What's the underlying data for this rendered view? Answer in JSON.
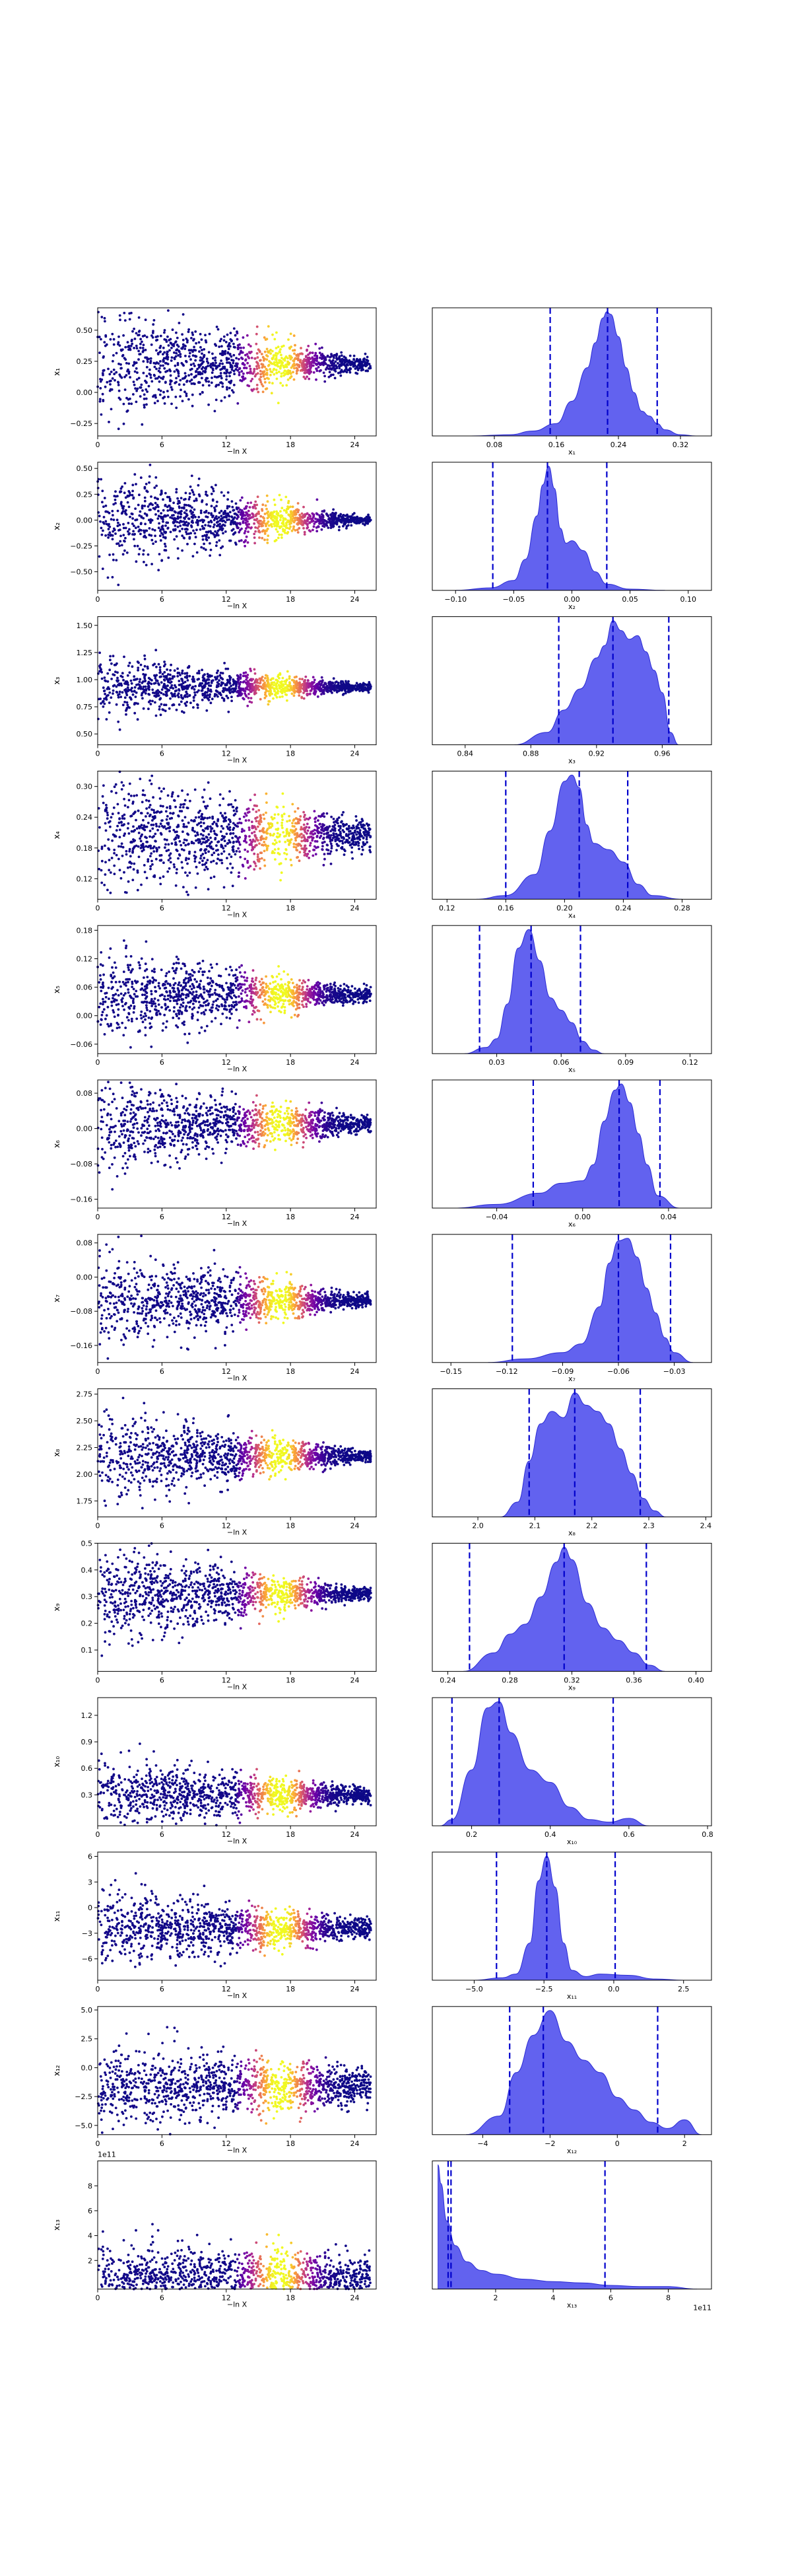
{
  "figure": {
    "left_xlabel": "−ln X",
    "left_xticks": [
      0,
      6,
      12,
      18,
      24
    ],
    "left_xlim": [
      0,
      26
    ]
  },
  "chart_data": [
    {
      "type": "scatter",
      "row": 1,
      "ylabel": "x₁",
      "ylim": [
        -0.35,
        0.68
      ],
      "yticks": [
        -0.25,
        0,
        0.25,
        0.5
      ],
      "ytick_labels": [
        "−0.25",
        "0.00",
        "0.25",
        "0.50"
      ],
      "center": 0.23,
      "spread_start": 0.24,
      "spread_end": 0.03,
      "mean_trend": 0.0
    },
    {
      "type": "area",
      "row": 1,
      "xlabel": "x₁",
      "xlim": [
        0.0,
        0.36
      ],
      "xticks": [
        0.08,
        0.16,
        0.24,
        0.32
      ],
      "xtick_labels": [
        "0.08",
        "0.16",
        "0.24",
        "0.32"
      ],
      "dashed_lines": [
        0.152,
        0.226,
        0.29
      ],
      "density_x": [
        0.05,
        0.1,
        0.13,
        0.16,
        0.18,
        0.2,
        0.21,
        0.22,
        0.225,
        0.23,
        0.24,
        0.25,
        0.26,
        0.27,
        0.28,
        0.29,
        0.3,
        0.32,
        0.34
      ],
      "density_y": [
        0,
        0.01,
        0.04,
        0.1,
        0.28,
        0.55,
        0.75,
        0.95,
        1.0,
        0.98,
        0.8,
        0.55,
        0.35,
        0.2,
        0.16,
        0.1,
        0.05,
        0.01,
        0
      ]
    },
    {
      "type": "scatter",
      "row": 2,
      "ylabel": "x₂",
      "ylim": [
        -0.68,
        0.56
      ],
      "yticks": [
        -0.5,
        -0.25,
        0,
        0.25,
        0.5
      ],
      "ytick_labels": [
        "−0.50",
        "−0.25",
        "0.00",
        "0.25",
        "0.50"
      ],
      "center": 0.0,
      "spread_start": 0.26,
      "spread_end": 0.02,
      "mean_trend": 0.0
    },
    {
      "type": "area",
      "row": 2,
      "xlabel": "x₂",
      "xlim": [
        -0.12,
        0.12
      ],
      "xticks": [
        -0.1,
        -0.05,
        0,
        0.05,
        0.1
      ],
      "xtick_labels": [
        "−0.10",
        "−0.05",
        "0.00",
        "0.05",
        "0.10"
      ],
      "dashed_lines": [
        -0.068,
        -0.021,
        0.03
      ],
      "density_x": [
        -0.1,
        -0.07,
        -0.05,
        -0.04,
        -0.03,
        -0.025,
        -0.02,
        -0.015,
        -0.01,
        -0.005,
        0.0,
        0.01,
        0.02,
        0.03,
        0.05,
        0.08
      ],
      "density_y": [
        0,
        0.02,
        0.08,
        0.25,
        0.6,
        0.85,
        1.0,
        0.82,
        0.5,
        0.38,
        0.4,
        0.32,
        0.15,
        0.05,
        0.01,
        0
      ]
    },
    {
      "type": "scatter",
      "row": 3,
      "ylabel": "x₃",
      "ylim": [
        0.4,
        1.58
      ],
      "yticks": [
        0.5,
        0.75,
        1.0,
        1.25,
        1.5
      ],
      "ytick_labels": [
        "0.50",
        "0.75",
        "1.00",
        "1.25",
        "1.50"
      ],
      "center": 0.93,
      "spread_start": 0.14,
      "spread_end": 0.02,
      "mean_trend": 0.0
    },
    {
      "type": "area",
      "row": 3,
      "xlabel": "x₃",
      "xlim": [
        0.82,
        0.99
      ],
      "xticks": [
        0.84,
        0.88,
        0.92,
        0.96
      ],
      "xtick_labels": [
        "0.84",
        "0.88",
        "0.92",
        "0.96"
      ],
      "dashed_lines": [
        0.897,
        0.93,
        0.964
      ],
      "density_x": [
        0.87,
        0.89,
        0.9,
        0.91,
        0.92,
        0.925,
        0.93,
        0.935,
        0.94,
        0.945,
        0.95,
        0.955,
        0.96,
        0.965,
        0.97
      ],
      "density_y": [
        0,
        0.1,
        0.28,
        0.45,
        0.7,
        0.8,
        1.0,
        0.92,
        0.85,
        0.88,
        0.75,
        0.6,
        0.42,
        0.1,
        0
      ]
    },
    {
      "type": "scatter",
      "row": 4,
      "ylabel": "x₄",
      "ylim": [
        0.08,
        0.33
      ],
      "yticks": [
        0.12,
        0.18,
        0.24,
        0.3
      ],
      "ytick_labels": [
        "0.12",
        "0.18",
        "0.24",
        "0.30"
      ],
      "center": 0.205,
      "spread_start": 0.065,
      "spread_end": 0.015,
      "mean_trend": 0.0
    },
    {
      "type": "area",
      "row": 4,
      "xlabel": "x₄",
      "xlim": [
        0.11,
        0.3
      ],
      "xticks": [
        0.12,
        0.16,
        0.2,
        0.24,
        0.28
      ],
      "xtick_labels": [
        "0.12",
        "0.16",
        "0.20",
        "0.24",
        "0.28"
      ],
      "dashed_lines": [
        0.16,
        0.21,
        0.243
      ],
      "density_x": [
        0.14,
        0.16,
        0.18,
        0.19,
        0.2,
        0.205,
        0.21,
        0.215,
        0.22,
        0.23,
        0.24,
        0.25,
        0.26,
        0.28
      ],
      "density_y": [
        0,
        0.03,
        0.2,
        0.55,
        0.95,
        1.0,
        0.9,
        0.6,
        0.45,
        0.4,
        0.3,
        0.12,
        0.03,
        0
      ]
    },
    {
      "type": "scatter",
      "row": 5,
      "ylabel": "x₅",
      "ylim": [
        -0.08,
        0.19
      ],
      "yticks": [
        -0.06,
        0,
        0.06,
        0.12,
        0.18
      ],
      "ytick_labels": [
        "−0.06",
        "0.00",
        "0.06",
        "0.12",
        "0.18"
      ],
      "center": 0.045,
      "spread_start": 0.05,
      "spread_end": 0.008,
      "mean_trend": 0.0
    },
    {
      "type": "area",
      "row": 5,
      "xlabel": "x₅",
      "xlim": [
        0.0,
        0.13
      ],
      "xticks": [
        0.03,
        0.06,
        0.09,
        0.12
      ],
      "xtick_labels": [
        "0.03",
        "0.06",
        "0.09",
        "0.12"
      ],
      "dashed_lines": [
        0.022,
        0.046,
        0.069
      ],
      "density_x": [
        0.015,
        0.025,
        0.03,
        0.035,
        0.04,
        0.045,
        0.05,
        0.055,
        0.06,
        0.065,
        0.07,
        0.075,
        0.08
      ],
      "density_y": [
        0,
        0.05,
        0.12,
        0.4,
        0.85,
        1.0,
        0.75,
        0.45,
        0.35,
        0.25,
        0.1,
        0.03,
        0
      ]
    },
    {
      "type": "scatter",
      "row": 6,
      "ylabel": "x₆",
      "ylim": [
        -0.18,
        0.11
      ],
      "yticks": [
        -0.16,
        -0.08,
        0,
        0.08
      ],
      "ytick_labels": [
        "−0.16",
        "−0.08",
        "0.00",
        "0.08"
      ],
      "center": 0.01,
      "spread_start": 0.055,
      "spread_end": 0.01,
      "mean_trend": 0.0
    },
    {
      "type": "area",
      "row": 6,
      "xlabel": "x₆",
      "xlim": [
        -0.07,
        0.06
      ],
      "xticks": [
        -0.04,
        0,
        0.04
      ],
      "xtick_labels": [
        "−0.04",
        "0.00",
        "0.04"
      ],
      "dashed_lines": [
        -0.023,
        0.017,
        0.036
      ],
      "density_x": [
        -0.06,
        -0.04,
        -0.02,
        -0.01,
        0.0,
        0.005,
        0.01,
        0.015,
        0.018,
        0.022,
        0.026,
        0.03,
        0.035,
        0.045
      ],
      "density_y": [
        0,
        0.03,
        0.12,
        0.2,
        0.22,
        0.35,
        0.7,
        0.95,
        1.0,
        0.85,
        0.6,
        0.35,
        0.1,
        0
      ]
    },
    {
      "type": "scatter",
      "row": 7,
      "ylabel": "x₇",
      "ylim": [
        -0.2,
        0.1
      ],
      "yticks": [
        -0.16,
        -0.08,
        0,
        0.08
      ],
      "ytick_labels": [
        "−0.16",
        "−0.08",
        "0.00",
        "0.08"
      ],
      "center": -0.055,
      "spread_start": 0.06,
      "spread_end": 0.008,
      "mean_trend": 0.0
    },
    {
      "type": "area",
      "row": 7,
      "xlabel": "x₇",
      "xlim": [
        -0.16,
        -0.01
      ],
      "xticks": [
        -0.15,
        -0.12,
        -0.09,
        -0.06,
        -0.03
      ],
      "xtick_labels": [
        "−0.15",
        "−0.12",
        "−0.09",
        "−0.06",
        "−0.03"
      ],
      "dashed_lines": [
        -0.117,
        -0.06,
        -0.032
      ],
      "density_x": [
        -0.13,
        -0.11,
        -0.09,
        -0.08,
        -0.07,
        -0.065,
        -0.06,
        -0.055,
        -0.05,
        -0.045,
        -0.04,
        -0.035,
        -0.03,
        -0.02
      ],
      "density_y": [
        0,
        0.03,
        0.08,
        0.15,
        0.45,
        0.8,
        0.98,
        1.0,
        0.85,
        0.6,
        0.4,
        0.2,
        0.08,
        0
      ]
    },
    {
      "type": "scatter",
      "row": 8,
      "ylabel": "x₈",
      "ylim": [
        1.6,
        2.8
      ],
      "yticks": [
        1.75,
        2.0,
        2.25,
        2.5,
        2.75
      ],
      "ytick_labels": [
        "1.75",
        "2.00",
        "2.25",
        "2.50",
        "2.75"
      ],
      "center": 2.17,
      "spread_start": 0.22,
      "spread_end": 0.03,
      "mean_trend": 0.0
    },
    {
      "type": "area",
      "row": 8,
      "xlabel": "x₈",
      "xlim": [
        1.92,
        2.41
      ],
      "xticks": [
        2.0,
        2.1,
        2.2,
        2.3,
        2.4
      ],
      "xtick_labels": [
        "2.0",
        "2.1",
        "2.2",
        "2.3",
        "2.4"
      ],
      "dashed_lines": [
        2.09,
        2.17,
        2.285
      ],
      "density_x": [
        2.04,
        2.07,
        2.09,
        2.11,
        2.13,
        2.15,
        2.17,
        2.19,
        2.21,
        2.23,
        2.25,
        2.27,
        2.29,
        2.31,
        2.33
      ],
      "density_y": [
        0,
        0.12,
        0.45,
        0.75,
        0.85,
        0.8,
        1.0,
        0.9,
        0.85,
        0.75,
        0.55,
        0.35,
        0.15,
        0.05,
        0
      ]
    },
    {
      "type": "scatter",
      "row": 9,
      "ylabel": "x₉",
      "ylim": [
        0.02,
        0.5
      ],
      "yticks": [
        0.1,
        0.2,
        0.3,
        0.4,
        0.5
      ],
      "ytick_labels": [
        "0.1",
        "0.2",
        "0.3",
        "0.4",
        "0.5"
      ],
      "center": 0.31,
      "spread_start": 0.095,
      "spread_end": 0.012,
      "mean_trend": 0.0
    },
    {
      "type": "area",
      "row": 9,
      "xlabel": "x₉",
      "xlim": [
        0.23,
        0.41
      ],
      "xticks": [
        0.24,
        0.28,
        0.32,
        0.36,
        0.4
      ],
      "xtick_labels": [
        "0.24",
        "0.28",
        "0.32",
        "0.36",
        "0.40"
      ],
      "dashed_lines": [
        0.254,
        0.315,
        0.368
      ],
      "density_x": [
        0.25,
        0.27,
        0.28,
        0.29,
        0.3,
        0.31,
        0.315,
        0.32,
        0.33,
        0.34,
        0.35,
        0.36,
        0.37,
        0.38
      ],
      "density_y": [
        0,
        0.15,
        0.3,
        0.38,
        0.6,
        0.88,
        1.0,
        0.9,
        0.55,
        0.35,
        0.25,
        0.15,
        0.05,
        0
      ]
    },
    {
      "type": "scatter",
      "row": 10,
      "ylabel": "x₁₀",
      "ylim": [
        -0.05,
        1.4
      ],
      "yticks": [
        0.3,
        0.6,
        0.9,
        1.2
      ],
      "ytick_labels": [
        "0.3",
        "0.6",
        "0.9",
        "1.2"
      ],
      "center": 0.3,
      "spread_start": 0.22,
      "spread_end": 0.05,
      "mean_trend": 0.0
    },
    {
      "type": "area",
      "row": 10,
      "xlabel": "x₁₀",
      "xlim": [
        0.1,
        0.81
      ],
      "xticks": [
        0.2,
        0.4,
        0.6,
        0.8
      ],
      "xtick_labels": [
        "0.2",
        "0.4",
        "0.6",
        "0.8"
      ],
      "dashed_lines": [
        0.15,
        0.27,
        0.56
      ],
      "density_x": [
        0.12,
        0.15,
        0.2,
        0.24,
        0.27,
        0.3,
        0.35,
        0.4,
        0.45,
        0.5,
        0.55,
        0.6,
        0.65
      ],
      "density_y": [
        0,
        0.05,
        0.45,
        0.95,
        1.0,
        0.75,
        0.45,
        0.35,
        0.15,
        0.05,
        0.03,
        0.06,
        0
      ]
    },
    {
      "type": "scatter",
      "row": 11,
      "ylabel": "x₁₁",
      "ylim": [
        -8.5,
        6.5
      ],
      "yticks": [
        -6,
        -3,
        0,
        3,
        6
      ],
      "ytick_labels": [
        "−6",
        "−3",
        "0",
        "3",
        "6"
      ],
      "center": -2.4,
      "spread_start": 2.4,
      "spread_end": 0.6,
      "mean_trend": 0.0
    },
    {
      "type": "area",
      "row": 11,
      "xlabel": "x₁₁",
      "xlim": [
        -6.5,
        3.5
      ],
      "xticks": [
        -5,
        -2.5,
        0,
        2.5
      ],
      "xtick_labels": [
        "−5.0",
        "−2.5",
        "0.0",
        "2.5"
      ],
      "dashed_lines": [
        -4.2,
        -2.4,
        0.05
      ],
      "density_x": [
        -5.0,
        -4.0,
        -3.5,
        -3.0,
        -2.7,
        -2.4,
        -2.1,
        -1.8,
        -1.5,
        -1.0,
        -0.5,
        0.5,
        1.5,
        2.5
      ],
      "density_y": [
        0,
        0.02,
        0.05,
        0.3,
        0.8,
        1.0,
        0.75,
        0.3,
        0.08,
        0.03,
        0.05,
        0.04,
        0.01,
        0
      ]
    },
    {
      "type": "scatter",
      "row": 12,
      "ylabel": "x₁₂",
      "ylim": [
        -5.8,
        5.3
      ],
      "yticks": [
        -5,
        -2.5,
        0,
        2.5,
        5
      ],
      "ytick_labels": [
        "−5.0",
        "−2.5",
        "0.0",
        "2.5",
        "5.0"
      ],
      "center": -1.6,
      "spread_start": 1.8,
      "spread_end": 0.9,
      "mean_trend": 0.0
    },
    {
      "type": "area",
      "row": 12,
      "xlabel": "x₁₂",
      "xlim": [
        -5.5,
        2.8
      ],
      "xticks": [
        -4,
        -2,
        0,
        2
      ],
      "xtick_labels": [
        "−4",
        "−2",
        "0",
        "2"
      ],
      "dashed_lines": [
        -3.2,
        -2.2,
        1.2
      ],
      "density_x": [
        -4.5,
        -3.5,
        -3.0,
        -2.5,
        -2.0,
        -1.5,
        -1.0,
        -0.5,
        0.0,
        0.5,
        1.0,
        1.5,
        2.0,
        2.5
      ],
      "density_y": [
        0,
        0.15,
        0.5,
        0.8,
        1.0,
        0.75,
        0.6,
        0.5,
        0.3,
        0.2,
        0.1,
        0.05,
        0.12,
        0
      ]
    },
    {
      "type": "scatter",
      "row": 13,
      "ylabel": "x₁₃",
      "ylim": [
        -0.3,
        10
      ],
      "yticks": [
        2,
        4,
        6,
        8
      ],
      "ytick_labels": [
        "2",
        "4",
        "6",
        "8"
      ],
      "offset_text": "1e11",
      "center": 0.6,
      "spread_start": 1.5,
      "spread_end": 0.9,
      "mean_trend": 0.0
    },
    {
      "type": "area",
      "row": 13,
      "xlabel": "x₁₃",
      "xlim": [
        -0.2,
        9.5
      ],
      "xticks": [
        2,
        4,
        6,
        8
      ],
      "xtick_labels": [
        "2",
        "4",
        "6",
        "8"
      ],
      "offset_text": "1e11",
      "dashed_lines": [
        0.35,
        0.45,
        5.8
      ],
      "density_x": [
        0.0,
        0.1,
        0.3,
        0.6,
        1.0,
        1.5,
        2.0,
        3.0,
        4.0,
        5.0,
        6.0,
        7.0,
        8.0,
        9.0
      ],
      "density_y": [
        1.0,
        0.85,
        0.55,
        0.35,
        0.22,
        0.15,
        0.12,
        0.08,
        0.06,
        0.05,
        0.03,
        0.02,
        0.02,
        0
      ]
    }
  ],
  "colors": {
    "area_fill": "#5555ee",
    "area_edge": "#2b2bd4",
    "dashed": "#0000cc",
    "scatter_colormap": [
      "#0d0887",
      "#6a00a8",
      "#b12a90",
      "#e16462",
      "#fca636",
      "#f0f921"
    ]
  }
}
